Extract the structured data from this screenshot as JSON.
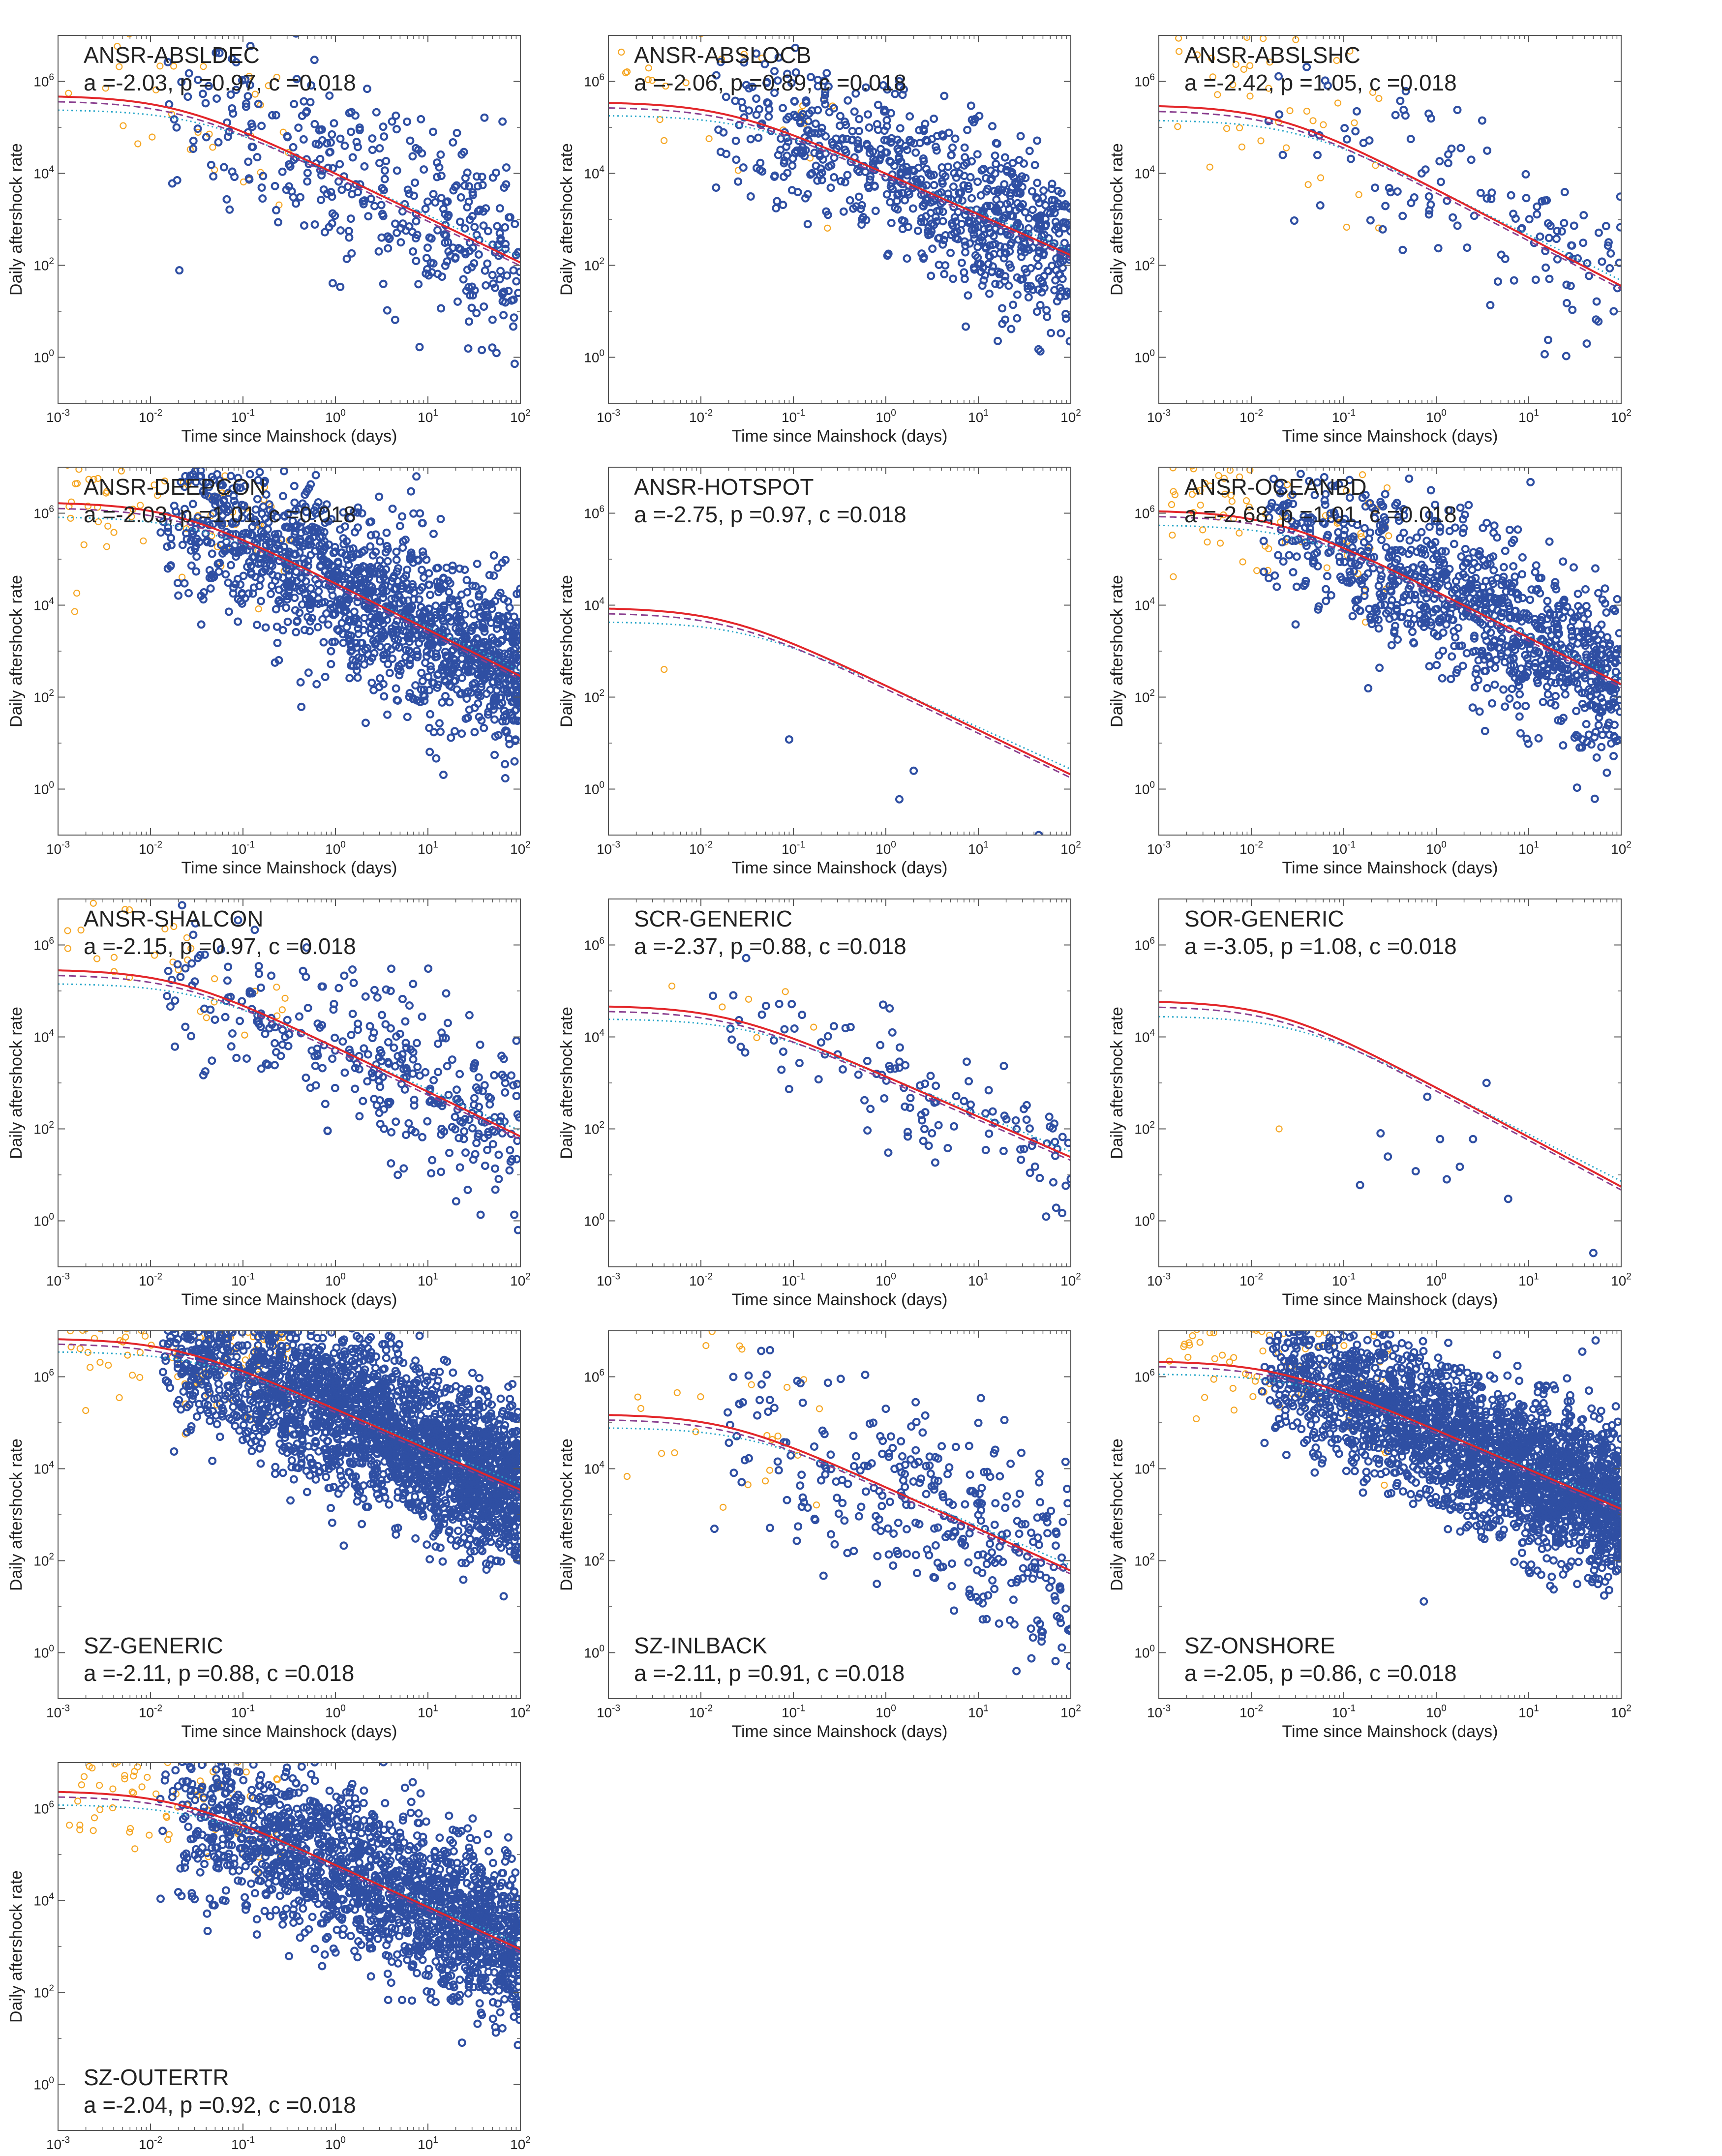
{
  "figure": {
    "xlabel": "Time since Mainshock (days)",
    "ylabel": "Daily aftershock rate",
    "xticks": [
      {
        "v": -3,
        "b": "10",
        "e": "-3"
      },
      {
        "v": -2,
        "b": "10",
        "e": "-2"
      },
      {
        "v": -1,
        "b": "10",
        "e": "-1"
      },
      {
        "v": 0,
        "b": "10",
        "e": "0"
      },
      {
        "v": 1,
        "b": "10",
        "e": "1"
      },
      {
        "v": 2,
        "b": "10",
        "e": "2"
      }
    ],
    "yticks": [
      {
        "v": 0,
        "b": "10",
        "e": "0"
      },
      {
        "v": 2,
        "b": "10",
        "e": "2"
      },
      {
        "v": 4,
        "b": "10",
        "e": "4"
      },
      {
        "v": 6,
        "b": "10",
        "e": "6"
      }
    ],
    "colors": {
      "observed_early": "#f5a623",
      "observed": "#2f4fa3",
      "fit_solid": "#e3262a",
      "fit_dashed": "#8a3f8f",
      "fit_dotted": "#2aa7c9"
    }
  },
  "chart_data": [
    {
      "type": "scatter",
      "title": "ANSR-ABSLDEC",
      "params": "a =-2.03, p =0.97, c =0.018",
      "xscale": "log",
      "yscale": "log",
      "xlim": [
        0.001,
        100
      ],
      "ylim": [
        0.1,
        10000000
      ],
      "K": 10000,
      "p": 0.97,
      "c": 0.018,
      "late_n": 380,
      "early_n": 30,
      "spread": 1.0
    },
    {
      "type": "scatter",
      "title": "ANSR-ABSLOCB",
      "params": "a =-2.06, p =0.89, c =0.018",
      "xscale": "log",
      "yscale": "log",
      "xlim": [
        0.001,
        100
      ],
      "ylim": [
        0.1,
        10000000
      ],
      "K": 10000,
      "p": 0.89,
      "c": 0.018,
      "late_n": 780,
      "early_n": 30,
      "spread": 0.9
    },
    {
      "type": "scatter",
      "title": "ANSR-ABSLSHC",
      "params": "a =-2.42, p =1.05, c =0.018",
      "xscale": "log",
      "yscale": "log",
      "xlim": [
        0.001,
        100
      ],
      "ylim": [
        0.1,
        10000000
      ],
      "K": 4500,
      "p": 1.05,
      "c": 0.018,
      "late_n": 130,
      "early_n": 40,
      "spread": 0.9
    },
    {
      "type": "scatter",
      "title": "ANSR-DEEPCON",
      "params": "a =-2.03, p =1.01, c =0.018",
      "xscale": "log",
      "yscale": "log",
      "xlim": [
        0.001,
        100
      ],
      "ylim": [
        0.1,
        10000000
      ],
      "K": 30000,
      "p": 1.01,
      "c": 0.018,
      "late_n": 1400,
      "early_n": 70,
      "spread": 0.9
    },
    {
      "type": "scatter",
      "title": "ANSR-HOTSPOT",
      "params": "a =-2.75, p =0.97, c =0.018",
      "xscale": "log",
      "yscale": "log",
      "xlim": [
        0.001,
        100
      ],
      "ylim": [
        0.1,
        10000000
      ],
      "K": 180,
      "p": 0.97,
      "c": 0.018,
      "late_n": 0,
      "early_n": 0,
      "spread": 0.5,
      "points": [
        {
          "x": 0.004,
          "y": 400,
          "early": true
        },
        {
          "x": 0.09,
          "y": 12
        },
        {
          "x": 2.0,
          "y": 2.5
        },
        {
          "x": 1.4,
          "y": 0.6
        },
        {
          "x": 45,
          "y": 0.1
        }
      ]
    },
    {
      "type": "scatter",
      "title": "ANSR-OCEANBD",
      "params": "a =-2.68, p =1.01, c =0.018",
      "xscale": "log",
      "yscale": "log",
      "xlim": [
        0.001,
        100
      ],
      "ylim": [
        0.1,
        10000000
      ],
      "K": 20000,
      "p": 1.01,
      "c": 0.018,
      "late_n": 1000,
      "early_n": 80,
      "spread": 0.9
    },
    {
      "type": "scatter",
      "title": "ANSR-SHALCON",
      "params": "a =-2.15, p =0.97, c =0.018",
      "xscale": "log",
      "yscale": "log",
      "xlim": [
        0.001,
        100
      ],
      "ylim": [
        0.1,
        10000000
      ],
      "K": 6000,
      "p": 0.97,
      "c": 0.018,
      "late_n": 330,
      "early_n": 30,
      "spread": 0.9
    },
    {
      "type": "scatter",
      "title": "SCR-GENERIC",
      "params": "a =-2.37, p =0.88, c =0.018",
      "xscale": "log",
      "yscale": "log",
      "xlim": [
        0.001,
        100
      ],
      "ylim": [
        0.1,
        10000000
      ],
      "K": 1400,
      "p": 0.88,
      "c": 0.018,
      "late_n": 120,
      "early_n": 6,
      "spread": 0.6
    },
    {
      "type": "scatter",
      "title": "SOR-GENERIC",
      "params": "a =-3.05, p =1.08, c =0.018",
      "xscale": "log",
      "yscale": "log",
      "xlim": [
        0.001,
        100
      ],
      "ylim": [
        0.1,
        10000000
      ],
      "K": 800,
      "p": 1.08,
      "c": 0.018,
      "late_n": 0,
      "early_n": 0,
      "spread": 0.5,
      "points": [
        {
          "x": 0.02,
          "y": 100,
          "early": true
        },
        {
          "x": 0.15,
          "y": 6
        },
        {
          "x": 0.3,
          "y": 25
        },
        {
          "x": 0.25,
          "y": 80
        },
        {
          "x": 0.6,
          "y": 12
        },
        {
          "x": 0.8,
          "y": 500
        },
        {
          "x": 1.1,
          "y": 60
        },
        {
          "x": 1.3,
          "y": 8
        },
        {
          "x": 1.8,
          "y": 15
        },
        {
          "x": 3.5,
          "y": 1000
        },
        {
          "x": 2.5,
          "y": 60
        },
        {
          "x": 6,
          "y": 3
        },
        {
          "x": 50,
          "y": 0.2
        }
      ]
    },
    {
      "type": "scatter",
      "title": "SZ-GENERIC",
      "params": "a =-2.11, p =0.88, c =0.018",
      "xscale": "log",
      "yscale": "log",
      "xlim": [
        0.001,
        100
      ],
      "ylim": [
        0.1,
        10000000
      ],
      "K": 200000,
      "p": 0.88,
      "c": 0.018,
      "late_n": 2600,
      "early_n": 140,
      "spread": 0.85
    },
    {
      "type": "scatter",
      "title": "SZ-INLBACK",
      "params": "a =-2.11, p =0.91, c =0.018",
      "xscale": "log",
      "yscale": "log",
      "xlim": [
        0.001,
        100
      ],
      "ylim": [
        0.1,
        10000000
      ],
      "K": 4000,
      "p": 0.91,
      "c": 0.018,
      "late_n": 330,
      "early_n": 25,
      "spread": 1.0
    },
    {
      "type": "scatter",
      "title": "SZ-ONSHORE",
      "params": "a =-2.05, p =0.86, c =0.018",
      "xscale": "log",
      "yscale": "log",
      "xlim": [
        0.001,
        100
      ],
      "ylim": [
        0.1,
        10000000
      ],
      "K": 70000,
      "p": 0.86,
      "c": 0.018,
      "late_n": 2500,
      "early_n": 110,
      "spread": 0.8
    },
    {
      "type": "scatter",
      "title": "SZ-OUTERTR",
      "params": "a =-2.04, p =0.92, c =0.018",
      "xscale": "log",
      "yscale": "log",
      "xlim": [
        0.001,
        100
      ],
      "ylim": [
        0.1,
        10000000
      ],
      "K": 60000,
      "p": 0.92,
      "c": 0.018,
      "late_n": 1800,
      "early_n": 90,
      "spread": 0.85
    }
  ]
}
